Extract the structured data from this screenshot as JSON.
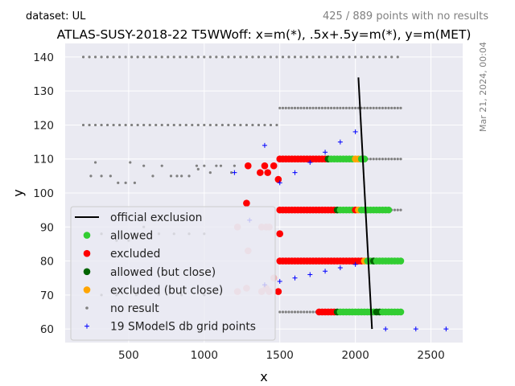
{
  "header": {
    "dataset_label": "dataset: UL",
    "points_summary": "425 / 889 points with no results",
    "timestamp": "Mar 21, 2024, 00:04"
  },
  "chart_data": {
    "type": "scatter",
    "title": "ATLAS-SUSY-2018-22 T5WWoff: x=m(*), .5x+.5y=m(*), y=m(MET)",
    "xlabel": "x",
    "ylabel": "y",
    "xlim": [
      80,
      2710
    ],
    "ylim": [
      56,
      144
    ],
    "xticks": [
      500,
      1000,
      1500,
      2000,
      2500
    ],
    "yticks": [
      60,
      70,
      80,
      90,
      100,
      110,
      120,
      130,
      140
    ],
    "grid": true,
    "legend_position": "lower-left",
    "legend": [
      {
        "label": "official exclusion",
        "kind": "line",
        "color": "#000000"
      },
      {
        "label": "allowed",
        "kind": "dot",
        "color": "#32cd32"
      },
      {
        "label": "excluded",
        "kind": "dot",
        "color": "#ff0000"
      },
      {
        "label": "allowed (but close)",
        "kind": "dot",
        "color": "#006400"
      },
      {
        "label": "excluded (but close)",
        "kind": "dot",
        "color": "#ffa500"
      },
      {
        "label": "no result",
        "kind": "small",
        "color": "#808080"
      },
      {
        "label": "19 SModelS db grid points",
        "kind": "plus",
        "color": "#0000ff"
      }
    ],
    "official_exclusion": {
      "x": [
        2020,
        2110
      ],
      "y": [
        134,
        60
      ]
    },
    "no_result_rows": [
      {
        "y": 140,
        "x_from": 200,
        "x_to": 2300,
        "step": 40
      },
      {
        "y": 120,
        "x_from": 200,
        "x_to": 1500,
        "step": 40
      },
      {
        "y": 125,
        "x_from": 1500,
        "x_to": 2300,
        "step": 20
      },
      {
        "y": 110,
        "x_from": 2080,
        "x_to": 2300,
        "step": 20
      },
      {
        "y": 95,
        "x_from": 2240,
        "x_to": 2300,
        "step": 20
      },
      {
        "y": 65,
        "x_from": 1500,
        "x_to": 1740,
        "step": 20
      }
    ],
    "no_result_scatter": [
      [
        280,
        109
      ],
      [
        250,
        105
      ],
      [
        320,
        105
      ],
      [
        380,
        105
      ],
      [
        430,
        103
      ],
      [
        480,
        103
      ],
      [
        510,
        109
      ],
      [
        540,
        103
      ],
      [
        600,
        108
      ],
      [
        660,
        105
      ],
      [
        720,
        108
      ],
      [
        780,
        105
      ],
      [
        820,
        105
      ],
      [
        850,
        105
      ],
      [
        900,
        105
      ],
      [
        950,
        108
      ],
      [
        960,
        107
      ],
      [
        1000,
        108
      ],
      [
        1040,
        106
      ],
      [
        1080,
        108
      ],
      [
        1110,
        108
      ],
      [
        1180,
        106
      ],
      [
        1200,
        108
      ],
      [
        320,
        88
      ],
      [
        420,
        86
      ],
      [
        500,
        86
      ],
      [
        600,
        90
      ],
      [
        700,
        88
      ],
      [
        800,
        88
      ],
      [
        900,
        88
      ],
      [
        1000,
        88
      ],
      [
        320,
        70
      ],
      [
        420,
        70
      ],
      [
        550,
        70
      ],
      [
        700,
        70
      ],
      [
        850,
        70
      ],
      [
        1000,
        70
      ]
    ],
    "status_rows": [
      {
        "y": 110,
        "segments": [
          {
            "status": "excluded",
            "x_from": 1500,
            "x_to": 1800,
            "step": 20
          },
          {
            "status": "allowed_close",
            "x_from": 1820,
            "x_to": 1820,
            "step": 20
          },
          {
            "status": "allowed",
            "x_from": 1840,
            "x_to": 1980,
            "step": 20
          },
          {
            "status": "excluded_close",
            "x_from": 2000,
            "x_to": 2020,
            "step": 20
          },
          {
            "status": "allowed",
            "x_from": 2040,
            "x_to": 2060,
            "step": 20
          }
        ]
      },
      {
        "y": 95,
        "segments": [
          {
            "status": "excluded",
            "x_from": 1500,
            "x_to": 1860,
            "step": 20
          },
          {
            "status": "allowed_close",
            "x_from": 1880,
            "x_to": 1880,
            "step": 20
          },
          {
            "status": "allowed",
            "x_from": 1900,
            "x_to": 1980,
            "step": 20
          },
          {
            "status": "excluded",
            "x_from": 2000,
            "x_to": 2000,
            "step": 20
          },
          {
            "status": "excluded_close",
            "x_from": 2020,
            "x_to": 2020,
            "step": 20
          },
          {
            "status": "allowed",
            "x_from": 2040,
            "x_to": 2220,
            "step": 20
          }
        ]
      },
      {
        "y": 80,
        "segments": [
          {
            "status": "excluded",
            "x_from": 1500,
            "x_to": 2040,
            "step": 20
          },
          {
            "status": "excluded_close",
            "x_from": 2060,
            "x_to": 2060,
            "step": 20
          },
          {
            "status": "allowed",
            "x_from": 2080,
            "x_to": 2100,
            "step": 20
          },
          {
            "status": "allowed_close",
            "x_from": 2120,
            "x_to": 2120,
            "step": 20
          },
          {
            "status": "allowed",
            "x_from": 2140,
            "x_to": 2300,
            "step": 20
          }
        ]
      },
      {
        "y": 65,
        "segments": [
          {
            "status": "excluded",
            "x_from": 1760,
            "x_to": 1860,
            "step": 20
          },
          {
            "status": "allowed_close",
            "x_from": 1880,
            "x_to": 1880,
            "step": 20
          },
          {
            "status": "allowed",
            "x_from": 1900,
            "x_to": 2120,
            "step": 20
          },
          {
            "status": "allowed_close",
            "x_from": 2140,
            "x_to": 2160,
            "step": 20
          },
          {
            "status": "allowed",
            "x_from": 2180,
            "x_to": 2300,
            "step": 20
          }
        ]
      }
    ],
    "status_points": [
      {
        "x": 1290,
        "y": 108,
        "status": "excluded"
      },
      {
        "x": 1370,
        "y": 106,
        "status": "excluded"
      },
      {
        "x": 1400,
        "y": 108,
        "status": "excluded"
      },
      {
        "x": 1420,
        "y": 106,
        "status": "excluded"
      },
      {
        "x": 1460,
        "y": 108,
        "status": "excluded"
      },
      {
        "x": 1490,
        "y": 104,
        "status": "excluded"
      },
      {
        "x": 1280,
        "y": 97,
        "status": "excluded"
      },
      {
        "x": 1500,
        "y": 88,
        "status": "excluded"
      },
      {
        "x": 1490,
        "y": 71,
        "status": "excluded"
      },
      {
        "x": 1220,
        "y": 90,
        "status": "excluded_faded"
      },
      {
        "x": 1380,
        "y": 90,
        "status": "excluded_faded"
      },
      {
        "x": 1410,
        "y": 90,
        "status": "excluded_faded"
      },
      {
        "x": 1430,
        "y": 90,
        "status": "excluded_faded"
      },
      {
        "x": 1290,
        "y": 83,
        "status": "excluded_faded"
      },
      {
        "x": 1460,
        "y": 75,
        "status": "excluded_faded"
      },
      {
        "x": 1220,
        "y": 71,
        "status": "excluded_faded"
      },
      {
        "x": 1280,
        "y": 72,
        "status": "excluded_faded"
      },
      {
        "x": 1380,
        "y": 71,
        "status": "excluded_faded"
      },
      {
        "x": 1410,
        "y": 72,
        "status": "excluded_faded"
      },
      {
        "x": 1430,
        "y": 71,
        "status": "excluded_faded"
      }
    ],
    "smodels_grid_points": [
      [
        1200,
        106
      ],
      [
        1400,
        114
      ],
      [
        1500,
        103
      ],
      [
        1500,
        74
      ],
      [
        1600,
        106
      ],
      [
        1600,
        75
      ],
      [
        1700,
        109
      ],
      [
        1700,
        76
      ],
      [
        1800,
        112
      ],
      [
        1800,
        77
      ],
      [
        1900,
        115
      ],
      [
        1900,
        78
      ],
      [
        2000,
        118
      ],
      [
        2000,
        79
      ],
      [
        2200,
        60
      ],
      [
        2400,
        60
      ],
      [
        2600,
        60
      ],
      [
        1400,
        73
      ],
      [
        1300,
        92
      ]
    ],
    "colors": {
      "allowed": "#32cd32",
      "excluded": "#ff0000",
      "allowed_close": "#006400",
      "excluded_close": "#ffa500",
      "excluded_faded": "#f0b4b8",
      "no_result": "#808080",
      "grid_point": "#0000ff",
      "exclusion_line": "#000000",
      "plot_background": "#eaeaf2"
    }
  }
}
